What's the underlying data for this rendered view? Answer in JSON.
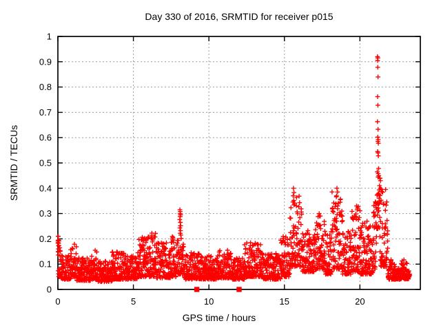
{
  "chart_data": {
    "type": "scatter",
    "title": "Day 330 of 2016, SRMTID for receiver p015",
    "xlabel": "GPS time / hours",
    "ylabel": "SRMTID / TECUs",
    "xlim": [
      0,
      24
    ],
    "ylim": [
      0,
      1
    ],
    "xticks": [
      0,
      5,
      10,
      15,
      20
    ],
    "xtick_labels": [
      "0",
      "5",
      "10",
      "15",
      "20"
    ],
    "yticks": [
      0,
      0.1,
      0.2,
      0.3,
      0.4,
      0.5,
      0.6,
      0.7,
      0.8,
      0.9,
      1
    ],
    "ytick_labels": [
      "0",
      "0.1",
      "0.2",
      "0.3",
      "0.4",
      "0.5",
      "0.6",
      "0.7",
      "0.8",
      "0.9",
      "1"
    ],
    "grid": true,
    "legend": "none",
    "colors": {
      "points": "#ff0000",
      "grid": "#9a9a9a",
      "axis": "#000000",
      "background": "#ffffff"
    },
    "seed": 20161125,
    "series": [
      {
        "name": "srmtid-samples",
        "marker": "plus",
        "color": "#ff0000",
        "cluster_exponent": 1.8,
        "envelope_segments": [
          [
            0.0,
            0.18,
            26,
            0.05,
            0.215
          ],
          [
            0.18,
            0.85,
            75,
            0.04,
            0.135
          ],
          [
            0.85,
            1.25,
            48,
            0.05,
            0.185
          ],
          [
            1.25,
            2.2,
            105,
            0.035,
            0.125
          ],
          [
            2.2,
            2.65,
            50,
            0.04,
            0.155
          ],
          [
            2.65,
            3.6,
            105,
            0.03,
            0.115
          ],
          [
            3.6,
            4.45,
            95,
            0.04,
            0.15
          ],
          [
            4.45,
            5.25,
            88,
            0.04,
            0.135
          ],
          [
            5.25,
            5.95,
            80,
            0.05,
            0.21
          ],
          [
            5.95,
            6.55,
            68,
            0.05,
            0.225
          ],
          [
            6.55,
            7.45,
            100,
            0.045,
            0.185
          ],
          [
            7.45,
            7.95,
            58,
            0.05,
            0.21
          ],
          [
            7.95,
            8.35,
            46,
            0.06,
            0.255
          ],
          [
            8.35,
            9.35,
            110,
            0.04,
            0.145
          ],
          [
            9.35,
            10.55,
            130,
            0.04,
            0.135
          ],
          [
            10.55,
            11.55,
            110,
            0.045,
            0.155
          ],
          [
            11.55,
            12.35,
            90,
            0.04,
            0.125
          ],
          [
            12.35,
            13.55,
            135,
            0.05,
            0.185
          ],
          [
            13.55,
            14.75,
            130,
            0.04,
            0.145
          ],
          [
            14.75,
            15.35,
            68,
            0.05,
            0.21
          ],
          [
            15.35,
            16.15,
            90,
            0.09,
            0.375
          ],
          [
            16.15,
            17.05,
            100,
            0.07,
            0.235
          ],
          [
            17.05,
            17.65,
            68,
            0.08,
            0.3
          ],
          [
            17.65,
            18.15,
            56,
            0.06,
            0.23
          ],
          [
            18.15,
            18.85,
            78,
            0.08,
            0.4
          ],
          [
            18.85,
            19.45,
            66,
            0.06,
            0.235
          ],
          [
            19.45,
            20.05,
            68,
            0.07,
            0.33
          ],
          [
            20.05,
            20.85,
            90,
            0.06,
            0.27
          ],
          [
            20.85,
            21.12,
            32,
            0.08,
            0.36
          ],
          [
            21.12,
            21.32,
            26,
            0.24,
            0.46
          ],
          [
            21.32,
            21.85,
            60,
            0.09,
            0.42
          ],
          [
            21.85,
            23.3,
            165,
            0.04,
            0.12
          ]
        ],
        "peak_points": [
          [
            0.02,
            0.21
          ],
          [
            0.03,
            0.195
          ],
          [
            0.02,
            0.185
          ],
          [
            0.04,
            0.172
          ],
          [
            0.03,
            0.16
          ],
          [
            0.02,
            0.15
          ],
          [
            8.08,
            0.315
          ],
          [
            8.1,
            0.308
          ],
          [
            8.09,
            0.3
          ],
          [
            8.12,
            0.295
          ],
          [
            8.1,
            0.288
          ],
          [
            8.07,
            0.276
          ],
          [
            8.11,
            0.265
          ],
          [
            8.13,
            0.252
          ],
          [
            8.08,
            0.243
          ],
          [
            8.12,
            0.232
          ],
          [
            8.1,
            0.222
          ],
          [
            8.14,
            0.215
          ],
          [
            15.6,
            0.4
          ],
          [
            15.63,
            0.383
          ],
          [
            15.58,
            0.37
          ],
          [
            17.3,
            0.3
          ],
          [
            17.33,
            0.29
          ],
          [
            18.48,
            0.4
          ],
          [
            18.52,
            0.385
          ],
          [
            18.45,
            0.37
          ],
          [
            19.78,
            0.33
          ],
          [
            19.82,
            0.315
          ],
          [
            21.16,
            0.92
          ],
          [
            21.19,
            0.915
          ],
          [
            21.17,
            0.905
          ],
          [
            21.18,
            0.878
          ],
          [
            21.2,
            0.84
          ],
          [
            21.17,
            0.762
          ],
          [
            21.19,
            0.728
          ],
          [
            21.16,
            0.663
          ],
          [
            21.2,
            0.633
          ],
          [
            21.18,
            0.602
          ],
          [
            21.21,
            0.592
          ],
          [
            21.19,
            0.585
          ],
          [
            21.22,
            0.578
          ],
          [
            21.17,
            0.545
          ],
          [
            21.2,
            0.54
          ],
          [
            21.22,
            0.528
          ],
          [
            21.24,
            0.478
          ],
          [
            21.15,
            0.465
          ],
          [
            21.33,
            0.44
          ],
          [
            21.36,
            0.43
          ],
          [
            21.3,
            0.41
          ],
          [
            21.35,
            0.4
          ]
        ]
      },
      {
        "name": "flagged-epochs",
        "marker": "filled-square",
        "color": "#ff0000",
        "points": [
          [
            9.2,
            0
          ],
          [
            12.0,
            0
          ]
        ]
      }
    ]
  }
}
